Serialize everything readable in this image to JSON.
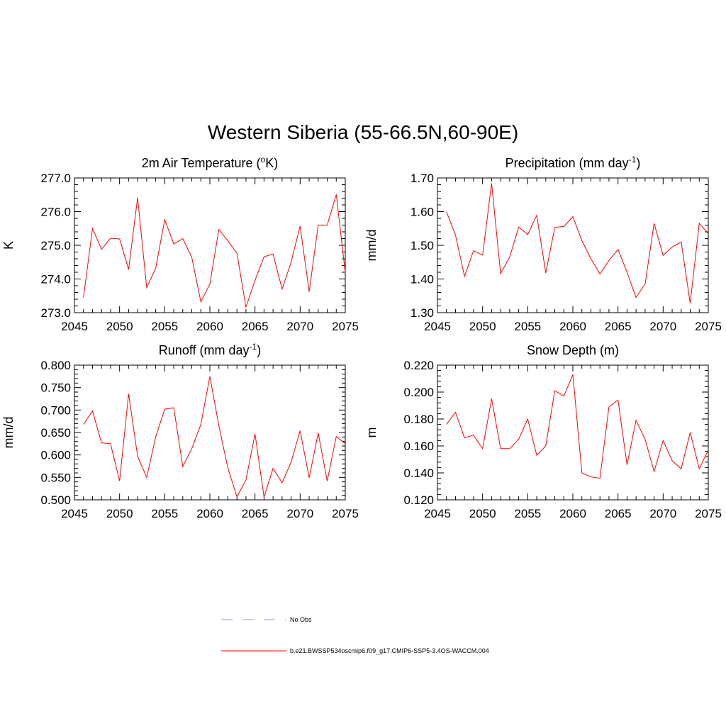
{
  "title": "Western Siberia (55-66.5N,60-90E)",
  "legend": [
    {
      "label": "No Obs",
      "color": "#9999dd",
      "style": "dashed"
    },
    {
      "label": "b.e21.BWSSP534oscmip6.f09_g17.CMIP6-SSP5-3.4OS-WACCM.004",
      "color": "#ff0000",
      "style": "solid"
    }
  ],
  "chart_data": [
    {
      "type": "line",
      "title": "2m Air Temperature (°K)",
      "title_parts": [
        "2m Air Temperature (",
        "o",
        "K)"
      ],
      "ylabel": "K",
      "xlim": [
        2045,
        2075
      ],
      "ylim": [
        273.0,
        277.0
      ],
      "xticks": [
        "2045",
        "2050",
        "2055",
        "2060",
        "2065",
        "2070",
        "2075"
      ],
      "yticks": [
        "273.0",
        "274.0",
        "275.0",
        "276.0",
        "277.0"
      ],
      "series": [
        {
          "color": "#ff0000",
          "x": [
            2046,
            2047,
            2048,
            2049,
            2050,
            2051,
            2052,
            2053,
            2054,
            2055,
            2056,
            2057,
            2058,
            2059,
            2060,
            2061,
            2062,
            2063,
            2064,
            2065,
            2066,
            2067,
            2068,
            2069,
            2070,
            2071,
            2072,
            2073,
            2074,
            2075
          ],
          "values": [
            273.45,
            275.5,
            274.88,
            275.21,
            275.19,
            274.28,
            276.42,
            273.74,
            274.32,
            275.76,
            275.04,
            275.2,
            274.64,
            273.32,
            273.85,
            275.47,
            275.13,
            274.77,
            273.16,
            273.96,
            274.66,
            274.74,
            273.7,
            274.5,
            275.57,
            273.62,
            275.6,
            275.6,
            276.51,
            274.18
          ]
        }
      ]
    },
    {
      "type": "line",
      "title": "Precipitation (mm day-1)",
      "title_parts": [
        "Precipitation (mm day",
        "-1",
        ")"
      ],
      "ylabel": "mm/d",
      "xlim": [
        2045,
        2075
      ],
      "ylim": [
        1.3,
        1.7
      ],
      "xticks": [
        "2045",
        "2050",
        "2055",
        "2060",
        "2065",
        "2070",
        "2075"
      ],
      "yticks": [
        "1.30",
        "1.40",
        "1.50",
        "1.60",
        "1.70"
      ],
      "series": [
        {
          "color": "#ff0000",
          "x": [
            2046,
            2047,
            2048,
            2049,
            2050,
            2051,
            2052,
            2053,
            2054,
            2055,
            2056,
            2057,
            2058,
            2059,
            2060,
            2061,
            2062,
            2063,
            2064,
            2065,
            2066,
            2067,
            2068,
            2069,
            2070,
            2071,
            2072,
            2073,
            2074,
            2075
          ],
          "values": [
            1.6,
            1.53,
            1.408,
            1.484,
            1.471,
            1.684,
            1.416,
            1.465,
            1.554,
            1.532,
            1.589,
            1.418,
            1.553,
            1.556,
            1.585,
            1.514,
            1.46,
            1.415,
            1.455,
            1.488,
            1.42,
            1.345,
            1.385,
            1.565,
            1.47,
            1.495,
            1.51,
            1.328,
            1.565,
            1.535
          ]
        }
      ]
    },
    {
      "type": "line",
      "title": "Runoff (mm day-1)",
      "title_parts": [
        "Runoff (mm day",
        "-1",
        ")"
      ],
      "ylabel": "mm/d",
      "xlim": [
        2045,
        2075
      ],
      "ylim": [
        0.5,
        0.8
      ],
      "xticks": [
        "2045",
        "2050",
        "2055",
        "2060",
        "2065",
        "2070",
        "2075"
      ],
      "yticks": [
        "0.500",
        "0.550",
        "0.600",
        "0.650",
        "0.700",
        "0.750",
        "0.800"
      ],
      "series": [
        {
          "color": "#ff0000",
          "x": [
            2046,
            2047,
            2048,
            2049,
            2050,
            2051,
            2052,
            2053,
            2054,
            2055,
            2056,
            2057,
            2058,
            2059,
            2060,
            2061,
            2062,
            2063,
            2064,
            2065,
            2066,
            2067,
            2068,
            2069,
            2070,
            2071,
            2072,
            2073,
            2074,
            2075
          ],
          "values": [
            0.668,
            0.698,
            0.627,
            0.625,
            0.542,
            0.736,
            0.597,
            0.55,
            0.64,
            0.702,
            0.705,
            0.574,
            0.614,
            0.668,
            0.775,
            0.665,
            0.57,
            0.507,
            0.544,
            0.647,
            0.506,
            0.57,
            0.538,
            0.584,
            0.654,
            0.549,
            0.649,
            0.542,
            0.641,
            0.625
          ]
        }
      ]
    },
    {
      "type": "line",
      "title": "Snow Depth (m)",
      "title_parts": [
        "Snow Depth (m)",
        "",
        ""
      ],
      "ylabel": "m",
      "xlim": [
        2045,
        2075
      ],
      "ylim": [
        0.12,
        0.22
      ],
      "xticks": [
        "2045",
        "2050",
        "2055",
        "2060",
        "2065",
        "2070",
        "2075"
      ],
      "yticks": [
        "0.120",
        "0.140",
        "0.160",
        "0.180",
        "0.200",
        "0.220"
      ],
      "series": [
        {
          "color": "#ff0000",
          "x": [
            2046,
            2047,
            2048,
            2049,
            2050,
            2051,
            2052,
            2053,
            2054,
            2055,
            2056,
            2057,
            2058,
            2059,
            2060,
            2061,
            2062,
            2063,
            2064,
            2065,
            2066,
            2067,
            2068,
            2069,
            2070,
            2071,
            2072,
            2073,
            2074,
            2075
          ],
          "values": [
            0.176,
            0.185,
            0.166,
            0.168,
            0.158,
            0.195,
            0.158,
            0.158,
            0.165,
            0.18,
            0.153,
            0.16,
            0.201,
            0.197,
            0.213,
            0.14,
            0.137,
            0.136,
            0.189,
            0.194,
            0.146,
            0.179,
            0.165,
            0.141,
            0.164,
            0.149,
            0.143,
            0.17,
            0.143,
            0.157
          ]
        }
      ]
    }
  ]
}
